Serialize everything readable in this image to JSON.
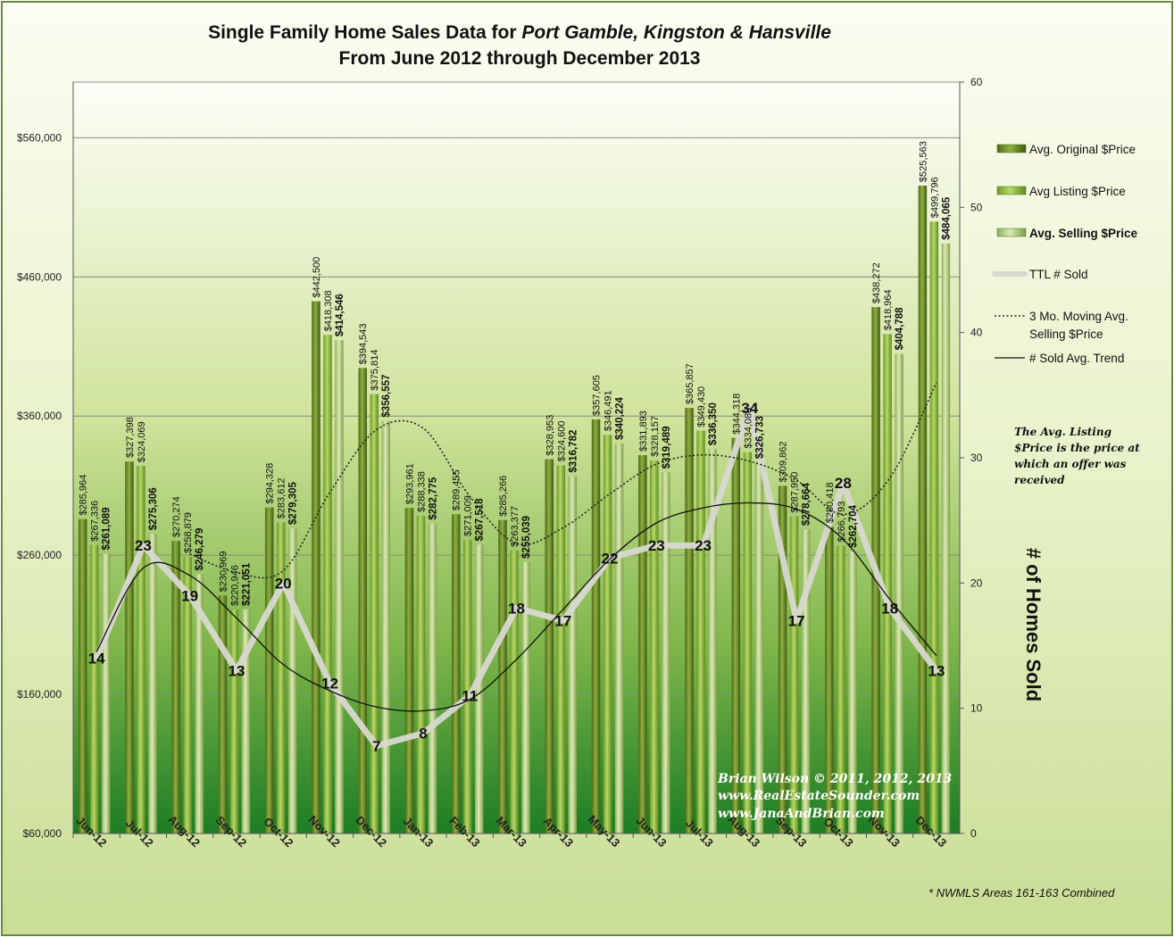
{
  "chart_data": {
    "type": "bar",
    "title_prefix": "Single Family Home Sales Data for ",
    "title_places": "Port Gamble, Kingston & Hansville",
    "subtitle": "From June 2012 through December 2013",
    "categories": [
      "Jun-12",
      "Jul-12",
      "Aug-12",
      "Sep-12",
      "Oct-12",
      "Nov-12",
      "Dec-12",
      "Jan-13",
      "Feb-13",
      "Mar-13",
      "Apr-13",
      "May-13",
      "Jun-13",
      "Jul-13",
      "Aug-13",
      "Sep-13",
      "Oct-13",
      "Nov-13",
      "Dec-13"
    ],
    "ylim": [
      60000,
      600000
    ],
    "y_ticks": [
      60000,
      160000,
      260000,
      360000,
      460000,
      560000
    ],
    "y_tick_labels": [
      "$60,000",
      "$160,000",
      "$260,000",
      "$360,000",
      "$460,000",
      "$560,000"
    ],
    "y2lim": [
      0,
      60
    ],
    "y2_ticks": [
      0,
      10,
      20,
      30,
      40,
      50,
      60
    ],
    "y2_tick_labels": [
      "0",
      "10",
      "20",
      "30",
      "40",
      "50",
      "60"
    ],
    "y2label": "# of Homes Sold",
    "grid": true,
    "legend_position": "right",
    "series": [
      {
        "name": "Avg. Original $Price",
        "kind": "bar",
        "axis": "left",
        "values": [
          285964,
          327398,
          270274,
          230969,
          294328,
          442500,
          394543,
          293961,
          289455,
          285266,
          328953,
          357605,
          331893,
          365857,
          344318,
          309862,
          280418,
          438272,
          525563
        ],
        "labels": [
          "$285,964",
          "$327,398",
          "$270,274",
          "$230,969",
          "$294,328",
          "$442,500",
          "$394,543",
          "$293,961",
          "$289,455",
          "$285,266",
          "$328,953",
          "$357,605",
          "$331,893",
          "$365,857",
          "$344,318",
          "$309,862",
          "$280,418",
          "$438,272",
          "$525,563"
        ]
      },
      {
        "name": "Avg Listing $Price",
        "kind": "bar",
        "axis": "left",
        "values": [
          267336,
          324069,
          258879,
          220946,
          283612,
          418308,
          375814,
          288338,
          271009,
          263377,
          324600,
          346491,
          328157,
          349430,
          334088,
          287950,
          266793,
          418964,
          499796
        ],
        "labels": [
          "$267,336",
          "$324,069",
          "$258,879",
          "$220,946",
          "$283,612",
          "$418,308",
          "$375,814",
          "$288,338",
          "$271,009",
          "$263,377",
          "$324,600",
          "$346,491",
          "$328,157",
          "$349,430",
          "$334,088",
          "$287,950",
          "$266,793",
          "$418,964",
          "$499,796"
        ]
      },
      {
        "name": "Avg. Selling $Price",
        "kind": "bar",
        "axis": "left",
        "values": [
          261089,
          275306,
          246279,
          221051,
          279305,
          414546,
          356557,
          282775,
          267518,
          255039,
          316782,
          340224,
          319489,
          336350,
          326733,
          278664,
          262704,
          404788,
          484065
        ],
        "labels": [
          "$261,089",
          "$275,306",
          "$246,279",
          "$221,051",
          "$279,305",
          "$414,546",
          "$356,557",
          "$282,775",
          "$267,518",
          "$255,039",
          "$316,782",
          "$340,224",
          "$319,489",
          "$336,350",
          "$326,733",
          "$278,664",
          "$262,704",
          "$404,788",
          "$484,065"
        ]
      },
      {
        "name": "TTL # Sold",
        "kind": "line",
        "axis": "right",
        "values": [
          14,
          23,
          19,
          13,
          20,
          12,
          7,
          8,
          11,
          18,
          17,
          22,
          23,
          23,
          34,
          17,
          28,
          18,
          13
        ]
      },
      {
        "name": "3 Mo. Moving Avg. Selling $Price",
        "kind": "line-dotted",
        "axis": "left",
        "values": [
          null,
          null,
          260891,
          247545,
          248878,
          304967,
          350136,
          351293,
          302283,
          268444,
          279780,
          304015,
          325498,
          332021,
          327524,
          313916,
          289367,
          315385,
          383852
        ]
      },
      {
        "name": "# Sold Avg. Trend",
        "kind": "line-trend",
        "axis": "right",
        "values": [
          14.5,
          21.2,
          20.6,
          17.2,
          13.5,
          11.4,
          10.1,
          9.8,
          10.7,
          13.9,
          17.9,
          21.9,
          24.8,
          26.0,
          26.4,
          25.9,
          23.5,
          18.7,
          14.2
        ]
      }
    ],
    "sold_labels": [
      "14",
      "23",
      "19",
      "13",
      "20",
      "12",
      "7",
      "8",
      "11",
      "18",
      "17",
      "22",
      "23",
      "23",
      "34",
      "17",
      "28",
      "18",
      "13"
    ],
    "annotations": {
      "listing_note": [
        "The Avg. Listing",
        "$Price is the price at",
        "which an offer was",
        "received"
      ],
      "credits": [
        "Brian Wilson  © 2011, 2012, 2013",
        "www.RealEstateSounder.com",
        "www.JanaAndBrian.com"
      ],
      "footnote": "* NWMLS Areas 161-163  Combined"
    },
    "legend": [
      {
        "label": "Avg. Original $Price",
        "bold": false
      },
      {
        "label": "Avg Listing $Price",
        "bold": false
      },
      {
        "label": "Avg. Selling $Price",
        "bold": true
      },
      {
        "label": "TTL # Sold",
        "bold": false
      },
      {
        "label": "3 Mo. Moving Avg.",
        "label2": "Selling $Price",
        "bold": false
      },
      {
        "label": "# Sold Avg. Trend",
        "bold": false
      }
    ],
    "colors": {
      "original": "#6f8f2a",
      "listing": "#8db63b",
      "selling": "#a8c86a",
      "sold_line": "#d4d4cc",
      "background_top": "#ffffff",
      "background_bottom": "#1f7a1f"
    }
  }
}
